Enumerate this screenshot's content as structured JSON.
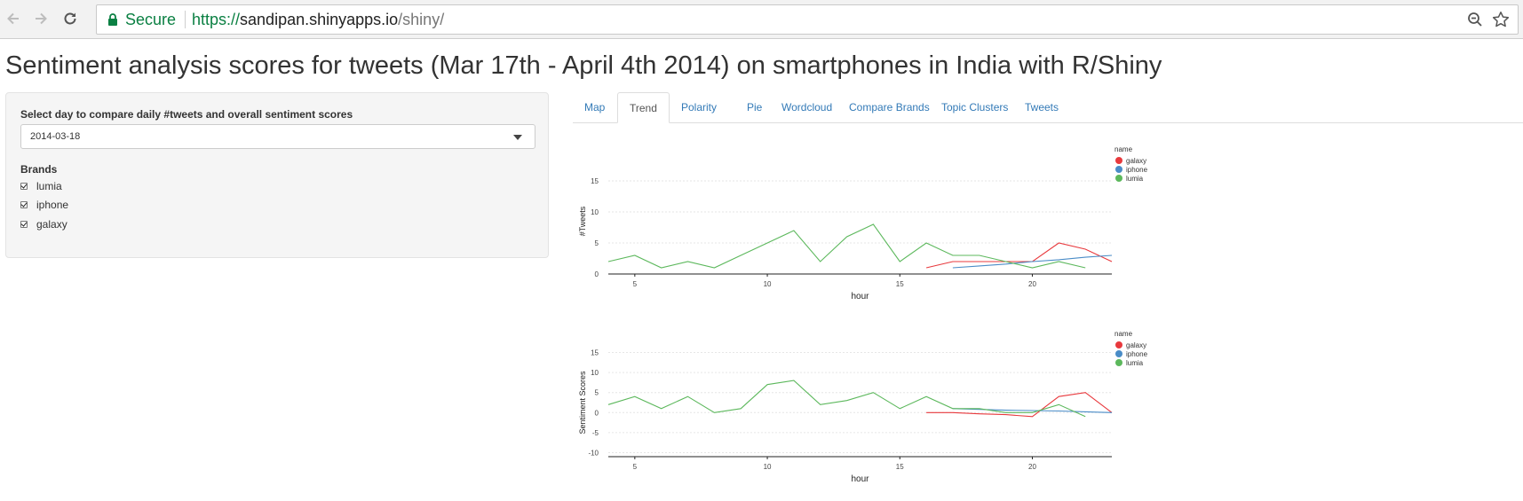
{
  "browser": {
    "secure_label": "Secure",
    "url_scheme": "https://",
    "url_host": "sandipan.shinyapps.io",
    "url_path": "/shiny/",
    "icons": [
      "back-arrow-icon",
      "forward-arrow-icon",
      "reload-icon",
      "lock-icon",
      "zoom-icon",
      "star-icon"
    ]
  },
  "page": {
    "title": "Sentiment analysis scores for tweets (Mar 17th - April 4th 2014) on smartphones in India with R/Shiny"
  },
  "sidebar": {
    "day_label": "Select day to compare daily #tweets and overall sentiment scores",
    "day_value": "2014-03-18",
    "brands_label": "Brands",
    "brands": [
      {
        "label": "lumia",
        "checked": true
      },
      {
        "label": "iphone",
        "checked": true
      },
      {
        "label": "galaxy",
        "checked": true
      }
    ]
  },
  "tabs": [
    {
      "label": "Map",
      "active": false
    },
    {
      "label": "Trend",
      "active": true
    },
    {
      "label": "Polarity",
      "active": false
    },
    {
      "label": "Pie",
      "active": false
    },
    {
      "label": "Wordcloud",
      "active": false
    },
    {
      "label": "Compare Brands",
      "active": false
    },
    {
      "label": "Topic Clusters",
      "active": false
    },
    {
      "label": "Tweets",
      "active": false
    }
  ],
  "colors": {
    "galaxy": "#e8393d",
    "iphone": "#4a8cc7",
    "lumia": "#5cb85c"
  },
  "chart_data": [
    {
      "type": "line",
      "xlabel": "hour",
      "ylabel": "#Tweets",
      "xlim": [
        4,
        23
      ],
      "ylim": [
        0,
        17
      ],
      "xticks": [
        5,
        10,
        15,
        20
      ],
      "yticks": [
        0,
        5,
        10,
        15
      ],
      "legend_title": "name",
      "legend_position": "top-right",
      "series": [
        {
          "name": "galaxy",
          "x": [
            16,
            17,
            18,
            19,
            20,
            21,
            22,
            23
          ],
          "y": [
            1,
            2,
            2,
            2,
            2,
            5,
            4,
            2
          ]
        },
        {
          "name": "iphone",
          "x": [
            17,
            18,
            19,
            20,
            21,
            22,
            23
          ],
          "y": [
            1,
            1.3,
            1.6,
            2,
            2.3,
            2.7,
            3
          ]
        },
        {
          "name": "lumia",
          "x": [
            4,
            5,
            6,
            7,
            8,
            9,
            10,
            11,
            12,
            13,
            14,
            15,
            16,
            17,
            18,
            19,
            20,
            21,
            22
          ],
          "y": [
            2,
            3,
            1,
            2,
            1,
            3,
            5,
            7,
            2,
            6,
            8,
            2,
            5,
            3,
            3,
            2,
            1,
            2,
            1
          ]
        }
      ]
    },
    {
      "type": "line",
      "xlabel": "hour",
      "ylabel": "Sentiment Scores",
      "xlim": [
        4,
        23
      ],
      "ylim": [
        -11,
        16
      ],
      "xticks": [
        5,
        10,
        15,
        20
      ],
      "yticks": [
        -10,
        -5,
        0,
        5,
        10,
        15
      ],
      "legend_title": "name",
      "legend_position": "top-right",
      "series": [
        {
          "name": "galaxy",
          "x": [
            16,
            17,
            18,
            19,
            20,
            21,
            22,
            23
          ],
          "y": [
            0,
            0,
            -0.3,
            -0.5,
            -1,
            4,
            5,
            0
          ]
        },
        {
          "name": "iphone",
          "x": [
            17,
            18,
            19,
            20,
            21,
            22,
            23
          ],
          "y": [
            1,
            0.8,
            0.6,
            0.5,
            0.4,
            0.2,
            0
          ]
        },
        {
          "name": "lumia",
          "x": [
            4,
            5,
            6,
            7,
            8,
            9,
            10,
            11,
            12,
            13,
            14,
            15,
            16,
            17,
            18,
            19,
            20,
            21,
            22
          ],
          "y": [
            2,
            4,
            1,
            4,
            0,
            1,
            7,
            8,
            2,
            3,
            5,
            1,
            4,
            1,
            1,
            0,
            0,
            2,
            -1
          ]
        }
      ]
    }
  ]
}
